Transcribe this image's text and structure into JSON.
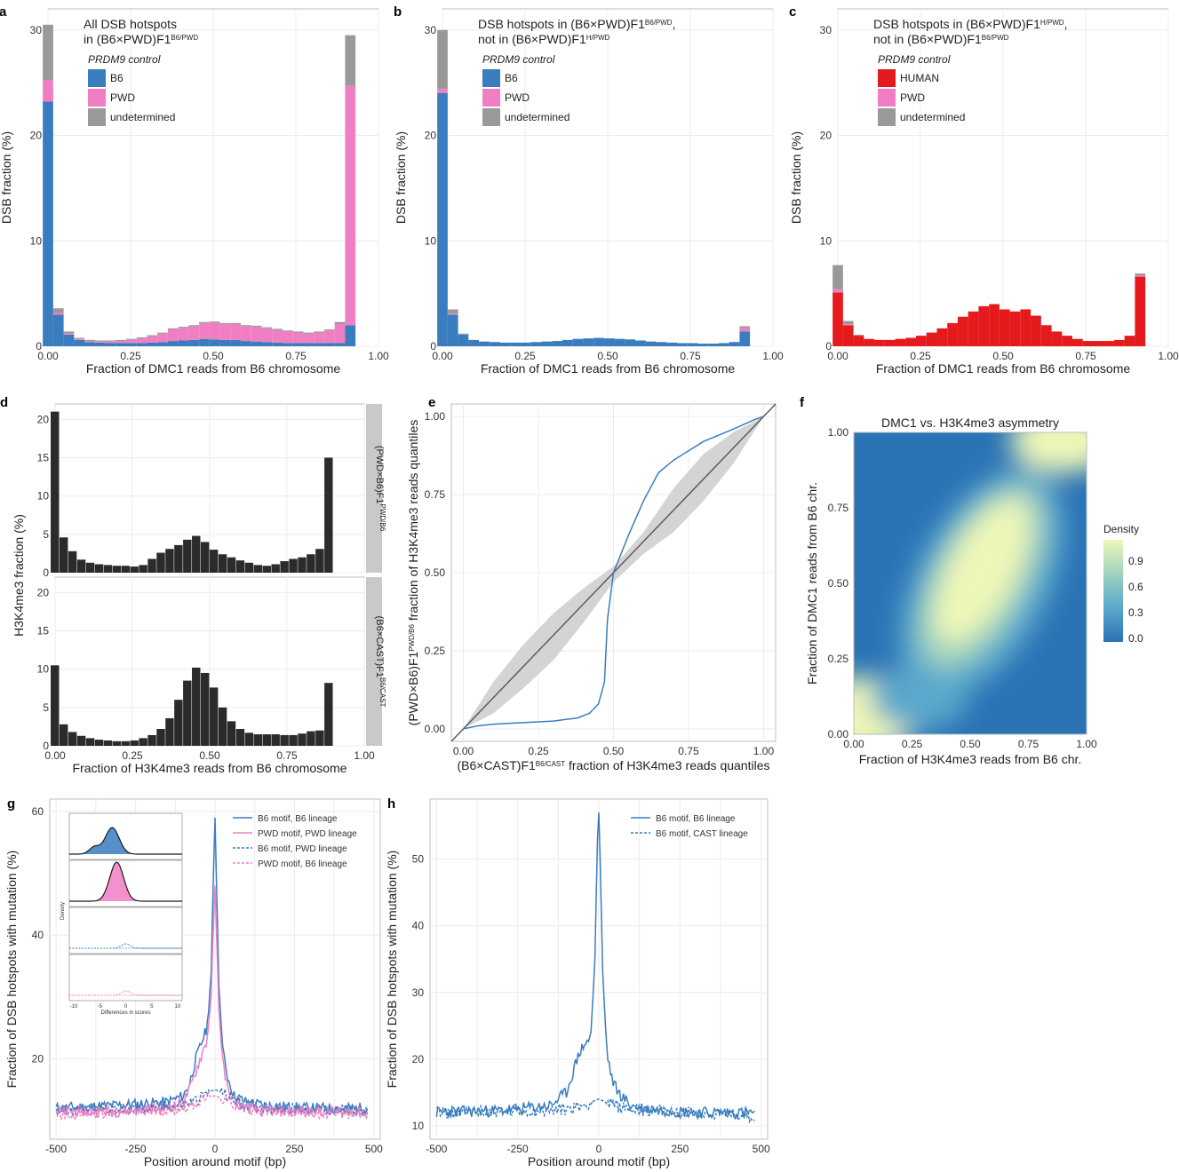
{
  "colors": {
    "b6": "#3a7dbf",
    "pwd": "#f07ec3",
    "undetermined": "#999999",
    "human": "#e41a1c",
    "black": "#2b2b2b",
    "identity_line": "#555555",
    "ci_band": "#d4d4d4"
  },
  "chart_data": [
    {
      "panel": "a",
      "type": "bar",
      "stacked": true,
      "title": "All DSB hotspots",
      "title2": "in (B6×PWD)F1",
      "title2_sup": "B6/PWD",
      "xlabel": "Fraction of DMC1 reads from B6 chromosome",
      "ylabel": "DSB fraction (%)",
      "xlim": [
        0,
        1
      ],
      "ylim": [
        0,
        32
      ],
      "xticks": [
        "0.00",
        "0.25",
        "0.50",
        "0.75",
        "1.00"
      ],
      "yticks": [
        "0",
        "10",
        "20",
        "30"
      ],
      "legend_title": "PRDM9 control",
      "series": [
        {
          "name": "B6",
          "color": "#3a7dbf",
          "values": [
            23.2,
            3,
            1.1,
            0.6,
            0.4,
            0.35,
            0.3,
            0.3,
            0.3,
            0.3,
            0.35,
            0.4,
            0.5,
            0.55,
            0.6,
            0.7,
            0.65,
            0.6,
            0.6,
            0.5,
            0.45,
            0.4,
            0.35,
            0.3,
            0.3,
            0.3,
            0.3,
            0.3,
            0.3,
            2
          ]
        },
        {
          "name": "PWD",
          "color": "#f07ec3",
          "values": [
            2,
            0.2,
            0.1,
            0.1,
            0.1,
            0.1,
            0.15,
            0.2,
            0.3,
            0.45,
            0.6,
            0.8,
            1.1,
            1.2,
            1.3,
            1.5,
            1.6,
            1.5,
            1.5,
            1.4,
            1.4,
            1.3,
            1.2,
            1.1,
            1.0,
            0.9,
            1.0,
            1.2,
            1.8,
            22.7
          ]
        },
        {
          "name": "undetermined",
          "color": "#999999",
          "values": [
            5.3,
            0.4,
            0.2,
            0.1,
            0.1,
            0.1,
            0.1,
            0.1,
            0.1,
            0.1,
            0.1,
            0.1,
            0.1,
            0.1,
            0.1,
            0.1,
            0.1,
            0.1,
            0.1,
            0.1,
            0.1,
            0.1,
            0.1,
            0.1,
            0.1,
            0.1,
            0.1,
            0.1,
            0.2,
            4.8
          ]
        }
      ]
    },
    {
      "panel": "b",
      "type": "bar",
      "stacked": true,
      "title": "DSB hotspots in (B6×PWD)F1",
      "title_sup": "B6/PWD",
      "title_tail": ",",
      "title2": "not in (B6×PWD)F1",
      "title2_sup": "H/PWD",
      "xlabel": "Fraction of DMC1 reads from B6 chromosome",
      "ylabel": "DSB fraction (%)",
      "xlim": [
        0,
        1
      ],
      "ylim": [
        0,
        32
      ],
      "xticks": [
        "0.00",
        "0.25",
        "0.50",
        "0.75",
        "1.00"
      ],
      "yticks": [
        "0",
        "10",
        "20",
        "30"
      ],
      "legend_title": "PRDM9 control",
      "series": [
        {
          "name": "B6",
          "color": "#3a7dbf",
          "values": [
            24,
            3,
            1.1,
            0.6,
            0.45,
            0.4,
            0.35,
            0.35,
            0.35,
            0.4,
            0.45,
            0.5,
            0.6,
            0.7,
            0.75,
            0.8,
            0.75,
            0.7,
            0.65,
            0.55,
            0.45,
            0.4,
            0.35,
            0.3,
            0.3,
            0.25,
            0.25,
            0.3,
            0.4,
            1.4
          ]
        },
        {
          "name": "PWD",
          "color": "#f07ec3",
          "values": [
            0.4,
            0.1,
            0,
            0,
            0,
            0,
            0,
            0,
            0,
            0,
            0,
            0,
            0,
            0,
            0,
            0,
            0,
            0,
            0,
            0,
            0,
            0,
            0,
            0,
            0,
            0,
            0,
            0,
            0,
            0.3
          ]
        },
        {
          "name": "undetermined",
          "color": "#999999",
          "values": [
            5.6,
            0.4,
            0.1,
            0,
            0,
            0,
            0,
            0,
            0,
            0,
            0,
            0,
            0,
            0,
            0,
            0,
            0,
            0,
            0,
            0,
            0,
            0,
            0,
            0,
            0,
            0,
            0,
            0,
            0,
            0.2
          ]
        }
      ]
    },
    {
      "panel": "c",
      "type": "bar",
      "stacked": true,
      "title": "DSB hotspots in (B6×PWD)F1",
      "title_sup": "H/PWD",
      "title_tail": ",",
      "title2": "not in (B6×PWD)F1",
      "title2_sup": "B6/PWD",
      "xlabel": "Fraction of DMC1 reads from B6 chromosome",
      "ylabel": "DSB fraction (%)",
      "xlim": [
        0,
        1
      ],
      "ylim": [
        0,
        32
      ],
      "xticks": [
        "0.00",
        "0.25",
        "0.50",
        "0.75",
        "1.00"
      ],
      "yticks": [
        "0",
        "10",
        "20",
        "30"
      ],
      "legend_title": "PRDM9 control",
      "series": [
        {
          "name": "HUMAN",
          "color": "#e41a1c",
          "values": [
            5.1,
            2,
            1,
            0.7,
            0.6,
            0.6,
            0.7,
            0.8,
            1.0,
            1.3,
            1.7,
            2.2,
            2.8,
            3.3,
            3.8,
            4.0,
            3.5,
            3.3,
            3.5,
            2.9,
            2.0,
            1.4,
            1.0,
            0.7,
            0.5,
            0.5,
            0.5,
            0.6,
            1.0,
            6.6
          ]
        },
        {
          "name": "PWD",
          "color": "#f07ec3",
          "values": [
            0.3,
            0.1,
            0,
            0,
            0,
            0,
            0,
            0,
            0,
            0,
            0,
            0,
            0,
            0,
            0,
            0,
            0,
            0,
            0,
            0,
            0,
            0,
            0,
            0,
            0,
            0,
            0,
            0,
            0,
            0.1
          ]
        },
        {
          "name": "undetermined",
          "color": "#999999",
          "values": [
            2.3,
            0.3,
            0.1,
            0,
            0,
            0,
            0,
            0,
            0,
            0,
            0,
            0,
            0,
            0,
            0,
            0,
            0,
            0,
            0,
            0,
            0,
            0,
            0,
            0,
            0,
            0,
            0,
            0,
            0,
            0.2
          ]
        }
      ]
    },
    {
      "panel": "d",
      "type": "bar",
      "facets": true,
      "xlabel": "Fraction of H3K4me3 reads from B6 chromosome",
      "ylabel": "H3K4me3 fraction (%)",
      "xlim": [
        0,
        1
      ],
      "ylim": [
        0,
        22
      ],
      "xticks": [
        "0.00",
        "0.25",
        "0.50",
        "0.75",
        "1.00"
      ],
      "yticks": [
        "0",
        "5",
        "10",
        "15",
        "20"
      ],
      "series": [
        {
          "name": "(PWD×B6)F1",
          "name_sup": "PWD/B6",
          "color": "#2b2b2b",
          "values": [
            21,
            4.6,
            2.8,
            1.7,
            1.3,
            1.1,
            1.0,
            0.9,
            0.9,
            0.8,
            1.0,
            1.8,
            2.6,
            3.1,
            3.6,
            4.3,
            4.8,
            4.0,
            3.0,
            2.4,
            2.0,
            1.6,
            1.3,
            1.0,
            0.9,
            1.1,
            1.5,
            1.8,
            2.0,
            2.4,
            3.1,
            15
          ]
        },
        {
          "name": "(B6×CAST)F1",
          "name_sup": "B6/CAST",
          "color": "#2b2b2b",
          "values": [
            10.5,
            2.8,
            1.8,
            1.3,
            1.0,
            0.8,
            0.7,
            0.6,
            0.6,
            0.7,
            1.0,
            1.4,
            2.2,
            3.6,
            6.0,
            8.5,
            10.2,
            9.5,
            7.6,
            5.0,
            3.2,
            2.2,
            1.7,
            1.5,
            1.5,
            1.5,
            1.4,
            1.4,
            1.6,
            1.9,
            2.0,
            8.2
          ]
        }
      ]
    },
    {
      "panel": "e",
      "type": "line",
      "xlabel": "(B6×CAST)F1",
      "xlabel_sup": "B6/CAST",
      "xlabel_tail": " fraction of H3K4me3 reads quantiles",
      "ylabel": "(PWD×B6)F1",
      "ylabel_sup": "PWD/B6",
      "ylabel_tail": " fraction of H3K4me3 reads quantiles",
      "xlim": [
        -0.04,
        1.04
      ],
      "ylim": [
        -0.04,
        1.04
      ],
      "xticks": [
        "0.00",
        "0.25",
        "0.50",
        "0.75",
        "1.00"
      ],
      "yticks": [
        "0.00",
        "0.25",
        "0.50",
        "0.75",
        "1.00"
      ],
      "qq_curve": {
        "color": "#3a7dbf",
        "x": [
          0.0,
          0.05,
          0.1,
          0.2,
          0.3,
          0.38,
          0.42,
          0.45,
          0.47,
          0.48,
          0.5,
          0.55,
          0.6,
          0.65,
          0.7,
          0.75,
          0.8,
          0.9,
          0.97,
          1.0
        ],
        "y": [
          0.0,
          0.01,
          0.015,
          0.02,
          0.025,
          0.035,
          0.05,
          0.08,
          0.15,
          0.35,
          0.5,
          0.62,
          0.73,
          0.82,
          0.86,
          0.89,
          0.92,
          0.96,
          0.99,
          1.0
        ]
      },
      "ci_band": {
        "x": [
          0.0,
          0.1,
          0.2,
          0.3,
          0.4,
          0.5,
          0.6,
          0.7,
          0.8,
          0.9,
          1.0
        ],
        "lower": [
          0.0,
          0.05,
          0.13,
          0.22,
          0.34,
          0.47,
          0.56,
          0.63,
          0.73,
          0.85,
          1.0
        ],
        "upper": [
          0.0,
          0.15,
          0.27,
          0.37,
          0.45,
          0.52,
          0.63,
          0.77,
          0.88,
          0.95,
          1.0
        ]
      }
    },
    {
      "panel": "f",
      "type": "heatmap",
      "title": "DMC1 vs. H3K4me3 asymmetry",
      "xlabel": "Fraction of H3K4me3 reads from B6 chr.",
      "ylabel": "Fraction of DMC1 reads from B6 chr.",
      "xlim": [
        0,
        1
      ],
      "ylim": [
        0,
        1
      ],
      "xticks": [
        "0.00",
        "0.25",
        "0.50",
        "0.75",
        "1.00"
      ],
      "yticks": [
        "0.00",
        "0.25",
        "0.50",
        "0.75",
        "1.00"
      ],
      "legend_title": "Density",
      "legend_ticks": [
        "0.9",
        "0.6",
        "0.3",
        "0.0"
      ],
      "colors": [
        "#2a73b5",
        "#5aa8cc",
        "#9fd3bd",
        "#eef7b7"
      ]
    },
    {
      "panel": "g",
      "type": "line",
      "xlabel": "Position around motif (bp)",
      "ylabel": "Fraction of DSB hotspots with mutation (%)",
      "xlim": [
        -520,
        520
      ],
      "ylim": [
        7,
        62
      ],
      "xticks": [
        "-500",
        "-250",
        "0",
        "250",
        "500"
      ],
      "yticks": [
        "20",
        "40",
        "60"
      ],
      "series": [
        {
          "name": "B6 motif, B6 lineage",
          "color": "#3a7dbf",
          "dash": "solid",
          "x": [
            -500,
            -300,
            -150,
            -100,
            -80,
            -60,
            -40,
            -25,
            -12,
            -5,
            0,
            5,
            12,
            25,
            40,
            60,
            100,
            150,
            300,
            480
          ],
          "y": [
            12,
            12.5,
            13,
            14,
            16,
            20,
            23,
            25,
            34,
            50,
            59,
            48,
            32,
            21,
            17,
            14,
            13,
            12.5,
            12,
            12
          ]
        },
        {
          "name": "PWD motif, PWD lineage",
          "color": "#f07ec3",
          "dash": "solid",
          "x": [
            -500,
            -300,
            -150,
            -100,
            -80,
            -60,
            -40,
            -25,
            -12,
            -5,
            0,
            5,
            12,
            25,
            40,
            60,
            100,
            150,
            300,
            480
          ],
          "y": [
            11.5,
            11.5,
            12,
            13,
            15,
            18,
            21,
            23,
            30,
            42,
            48,
            40,
            28,
            19,
            15,
            13,
            12,
            11.5,
            11.5,
            11.5
          ]
        },
        {
          "name": "B6 motif, PWD lineage",
          "color": "#3a7dbf",
          "dash": "dashed",
          "x": [
            -500,
            -200,
            -100,
            -50,
            -25,
            0,
            25,
            50,
            100,
            200,
            480
          ],
          "y": [
            11.5,
            12,
            12.5,
            13.5,
            14.5,
            15,
            14.5,
            13.5,
            12.5,
            12,
            11.5
          ]
        },
        {
          "name": "PWD motif, B6 lineage",
          "color": "#f07ec3",
          "dash": "dashed",
          "x": [
            -500,
            -200,
            -100,
            -50,
            -25,
            0,
            25,
            50,
            100,
            200,
            480
          ],
          "y": [
            11,
            11.5,
            12,
            13,
            13.8,
            14,
            13.5,
            12.8,
            12,
            11.5,
            11
          ]
        }
      ],
      "inset": {
        "ylabel": "Density",
        "xlabel": "Differences in scores",
        "xticks": [
          "-10",
          "-5",
          "0",
          "5",
          "10"
        ]
      }
    },
    {
      "panel": "h",
      "type": "line",
      "xlabel": "Position around motif (bp)",
      "ylabel": "Fraction of DSB hotspots with mutation (%)",
      "xlim": [
        -520,
        520
      ],
      "ylim": [
        8,
        59
      ],
      "xticks": [
        "-500",
        "-250",
        "0",
        "250",
        "500"
      ],
      "yticks": [
        "10",
        "20",
        "30",
        "40",
        "50"
      ],
      "series": [
        {
          "name": "B6 motif, B6 lineage",
          "color": "#3a7dbf",
          "dash": "solid",
          "x": [
            -500,
            -300,
            -150,
            -100,
            -80,
            -60,
            -40,
            -25,
            -12,
            -5,
            0,
            5,
            12,
            25,
            40,
            60,
            100,
            150,
            300,
            480
          ],
          "y": [
            12,
            12.3,
            13,
            15,
            18,
            21,
            22.5,
            23,
            35,
            52,
            57,
            48,
            33,
            21,
            17,
            15,
            13,
            12.5,
            12,
            12
          ]
        },
        {
          "name": "B6 motif, CAST lineage",
          "color": "#3a7dbf",
          "dash": "dashed",
          "x": [
            -500,
            -200,
            -100,
            -50,
            -25,
            0,
            25,
            50,
            100,
            200,
            480
          ],
          "y": [
            12,
            12.2,
            12.5,
            13,
            13.5,
            14,
            13.5,
            13,
            12.5,
            12.2,
            11.5
          ]
        }
      ]
    }
  ]
}
